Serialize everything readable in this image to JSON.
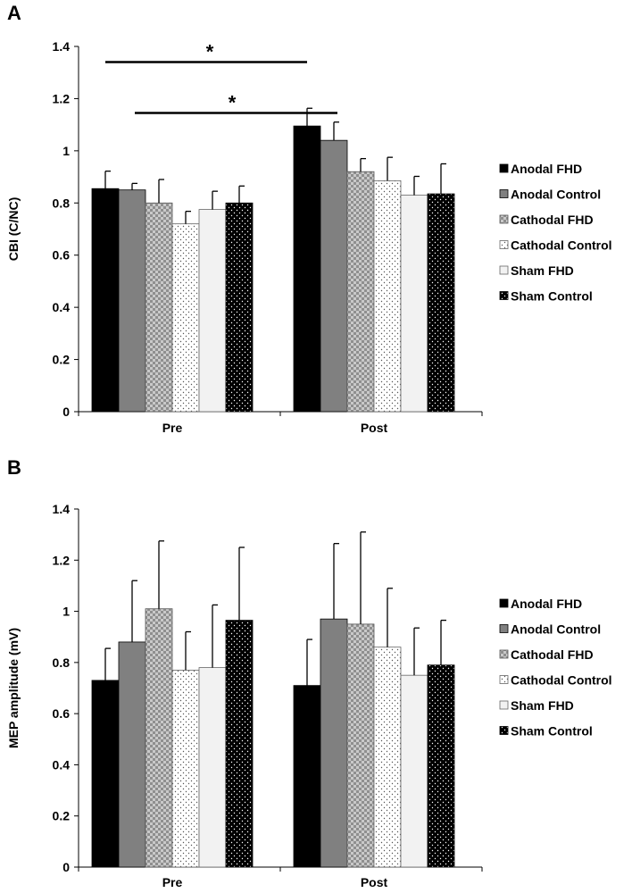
{
  "chart_data": [
    {
      "type": "bar",
      "panel": "A",
      "ylabel": "CBI (C/NC)",
      "xlabel": "",
      "ylim": [
        0,
        1.4
      ],
      "yticks": [
        "0",
        "0.2",
        "0.4",
        "0.6",
        "0.8",
        "1",
        "1.2",
        "1.4"
      ],
      "categories": [
        "Pre",
        "Post"
      ],
      "series": [
        {
          "name": "Anodal FHD",
          "values": [
            0.855,
            1.095
          ],
          "errors": [
            0.067,
            0.068
          ]
        },
        {
          "name": "Anodal Control",
          "values": [
            0.85,
            1.04
          ],
          "errors": [
            0.025,
            0.07
          ]
        },
        {
          "name": "Cathodal FHD",
          "values": [
            0.8,
            0.92
          ],
          "errors": [
            0.09,
            0.05
          ]
        },
        {
          "name": "Cathodal Control",
          "values": [
            0.72,
            0.885
          ],
          "errors": [
            0.048,
            0.09
          ]
        },
        {
          "name": "Sham FHD",
          "values": [
            0.775,
            0.83
          ],
          "errors": [
            0.07,
            0.072
          ]
        },
        {
          "name": "Sham Control",
          "values": [
            0.8,
            0.835
          ],
          "errors": [
            0.065,
            0.115
          ]
        }
      ],
      "significance": [
        {
          "label": "*",
          "y": 1.34
        },
        {
          "label": "*",
          "y": 1.145
        }
      ],
      "legend_position": "right"
    },
    {
      "type": "bar",
      "panel": "B",
      "ylabel": "MEP amplitude (mV)",
      "xlabel": "",
      "ylim": [
        0,
        1.4
      ],
      "yticks": [
        "0",
        "0.2",
        "0.4",
        "0.6",
        "0.8",
        "1",
        "1.2",
        "1.4"
      ],
      "categories": [
        "Pre",
        "Post"
      ],
      "series": [
        {
          "name": "Anodal FHD",
          "values": [
            0.73,
            0.71
          ],
          "errors": [
            0.125,
            0.18
          ]
        },
        {
          "name": "Anodal Control",
          "values": [
            0.88,
            0.97
          ],
          "errors": [
            0.24,
            0.295
          ]
        },
        {
          "name": "Cathodal FHD",
          "values": [
            1.01,
            0.95
          ],
          "errors": [
            0.265,
            0.36
          ]
        },
        {
          "name": "Cathodal Control",
          "values": [
            0.77,
            0.86
          ],
          "errors": [
            0.15,
            0.23
          ]
        },
        {
          "name": "Sham FHD",
          "values": [
            0.78,
            0.75
          ],
          "errors": [
            0.245,
            0.185
          ]
        },
        {
          "name": "Sham Control",
          "values": [
            0.965,
            0.79
          ],
          "errors": [
            0.285,
            0.175
          ]
        }
      ],
      "legend_position": "right"
    }
  ],
  "colors": {
    "Anodal FHD": "#000000",
    "Anodal Control": "#808080",
    "Cathodal FHD": "#c8c8c8",
    "Cathodal Control": "#ffffff",
    "Sham FHD": "#f2f2f2",
    "Sham Control": "#000000"
  }
}
